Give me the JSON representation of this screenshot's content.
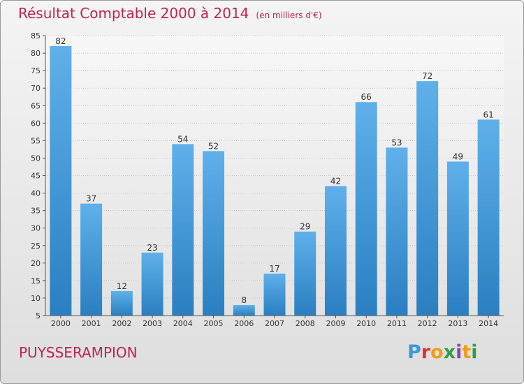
{
  "header": {
    "title": "Résultat Comptable 2000 à 2014",
    "unit": "(en milliers d'€)"
  },
  "commune": "PUYSSERAMPION",
  "logo": {
    "text": "Proxiti"
  },
  "colors": {
    "title": "#c0234e",
    "bar_light": "#5fb0ea",
    "bar_dark": "#2a7fc1"
  },
  "chart_data": {
    "type": "bar",
    "title": "Résultat Comptable 2000 à 2014",
    "categories": [
      "2000",
      "2001",
      "2002",
      "2003",
      "2004",
      "2005",
      "2006",
      "2007",
      "2008",
      "2009",
      "2010",
      "2011",
      "2012",
      "2013",
      "2014"
    ],
    "values": [
      82,
      37,
      12,
      23,
      54,
      52,
      8,
      17,
      29,
      42,
      66,
      53,
      72,
      49,
      61
    ],
    "ylim": [
      5,
      85
    ],
    "yticks": [
      5,
      10,
      15,
      20,
      25,
      30,
      35,
      40,
      45,
      50,
      55,
      60,
      65,
      70,
      75,
      80,
      85
    ],
    "grid": true,
    "xlabel": "",
    "ylabel": ""
  }
}
